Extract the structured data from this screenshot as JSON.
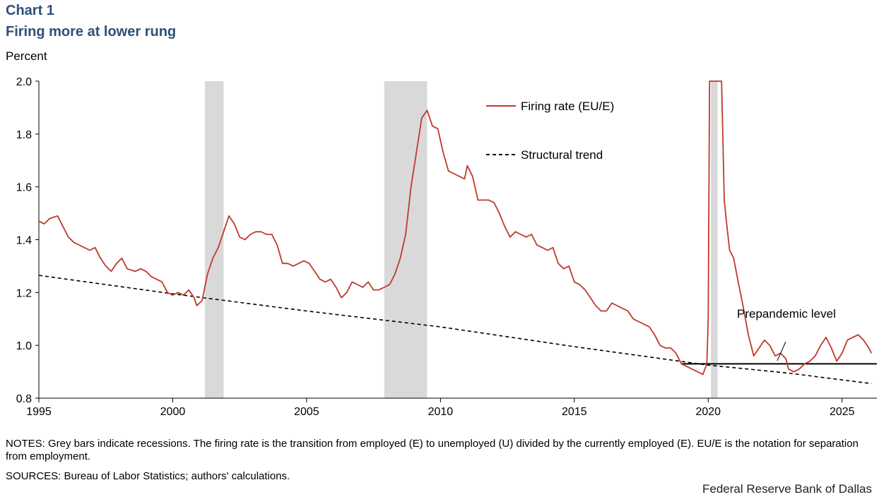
{
  "header": {
    "chart_label": "Chart 1",
    "title": "Firing more at lower rung",
    "y_unit": "Percent"
  },
  "notes": "NOTES: Grey bars indicate recessions. The firing rate is the transition from employed (E) to unemployed (U) divided by the currently employed (E). EU/E is the notation for separation from employment.",
  "sources": "SOURCES: Bureau of Labor Statistics; authors' calculations.",
  "footer": "Federal Reserve Bank of Dallas",
  "chart_data": {
    "type": "line",
    "title": "Firing more at lower rung",
    "ylabel": "Percent",
    "xlim": [
      1995,
      2026.3
    ],
    "ylim": [
      0.8,
      2.0
    ],
    "x_ticks": [
      1995,
      2000,
      2005,
      2010,
      2015,
      2020,
      2025
    ],
    "y_ticks": [
      "0.8",
      "1.0",
      "1.2",
      "1.4",
      "1.6",
      "1.8",
      "2.0"
    ],
    "grid": false,
    "legend_position": "top-center",
    "recessions": [
      [
        2001.2,
        2001.9
      ],
      [
        2007.9,
        2009.5
      ],
      [
        2020.1,
        2020.35
      ]
    ],
    "colors": {
      "firing": "#c0392b",
      "recession": "#d9d9d9",
      "trend": "#000000",
      "prepandemic": "#000000"
    },
    "annotations": [
      {
        "text": "Prepandemic level"
      }
    ],
    "series": [
      {
        "name": "Firing rate (EU/E)",
        "style": "solid",
        "points": [
          [
            1995.0,
            1.47
          ],
          [
            1995.2,
            1.46
          ],
          [
            1995.4,
            1.48
          ],
          [
            1995.7,
            1.49
          ],
          [
            1995.9,
            1.45
          ],
          [
            1996.1,
            1.41
          ],
          [
            1996.3,
            1.39
          ],
          [
            1996.5,
            1.38
          ],
          [
            1996.7,
            1.37
          ],
          [
            1996.9,
            1.36
          ],
          [
            1997.1,
            1.37
          ],
          [
            1997.3,
            1.33
          ],
          [
            1997.5,
            1.3
          ],
          [
            1997.7,
            1.28
          ],
          [
            1997.9,
            1.31
          ],
          [
            1998.1,
            1.33
          ],
          [
            1998.3,
            1.29
          ],
          [
            1998.6,
            1.28
          ],
          [
            1998.8,
            1.29
          ],
          [
            1999.0,
            1.28
          ],
          [
            1999.2,
            1.26
          ],
          [
            1999.4,
            1.25
          ],
          [
            1999.6,
            1.24
          ],
          [
            1999.8,
            1.2
          ],
          [
            2000.0,
            1.19
          ],
          [
            2000.2,
            1.2
          ],
          [
            2000.4,
            1.19
          ],
          [
            2000.6,
            1.21
          ],
          [
            2000.8,
            1.18
          ],
          [
            2000.9,
            1.15
          ],
          [
            2001.1,
            1.17
          ],
          [
            2001.3,
            1.27
          ],
          [
            2001.5,
            1.33
          ],
          [
            2001.7,
            1.37
          ],
          [
            2001.9,
            1.43
          ],
          [
            2002.1,
            1.49
          ],
          [
            2002.3,
            1.46
          ],
          [
            2002.5,
            1.41
          ],
          [
            2002.7,
            1.4
          ],
          [
            2002.9,
            1.42
          ],
          [
            2003.1,
            1.43
          ],
          [
            2003.3,
            1.43
          ],
          [
            2003.5,
            1.42
          ],
          [
            2003.7,
            1.42
          ],
          [
            2003.9,
            1.38
          ],
          [
            2004.1,
            1.31
          ],
          [
            2004.3,
            1.31
          ],
          [
            2004.5,
            1.3
          ],
          [
            2004.7,
            1.31
          ],
          [
            2004.9,
            1.32
          ],
          [
            2005.1,
            1.31
          ],
          [
            2005.3,
            1.28
          ],
          [
            2005.5,
            1.25
          ],
          [
            2005.7,
            1.24
          ],
          [
            2005.9,
            1.25
          ],
          [
            2006.1,
            1.22
          ],
          [
            2006.3,
            1.18
          ],
          [
            2006.5,
            1.2
          ],
          [
            2006.7,
            1.24
          ],
          [
            2006.9,
            1.23
          ],
          [
            2007.1,
            1.22
          ],
          [
            2007.3,
            1.24
          ],
          [
            2007.5,
            1.21
          ],
          [
            2007.7,
            1.21
          ],
          [
            2007.9,
            1.22
          ],
          [
            2008.1,
            1.23
          ],
          [
            2008.3,
            1.27
          ],
          [
            2008.5,
            1.33
          ],
          [
            2008.7,
            1.42
          ],
          [
            2008.9,
            1.6
          ],
          [
            2009.1,
            1.73
          ],
          [
            2009.3,
            1.86
          ],
          [
            2009.5,
            1.89
          ],
          [
            2009.7,
            1.83
          ],
          [
            2009.9,
            1.82
          ],
          [
            2010.1,
            1.73
          ],
          [
            2010.3,
            1.66
          ],
          [
            2010.5,
            1.65
          ],
          [
            2010.7,
            1.64
          ],
          [
            2010.9,
            1.63
          ],
          [
            2011.0,
            1.68
          ],
          [
            2011.2,
            1.64
          ],
          [
            2011.4,
            1.55
          ],
          [
            2011.6,
            1.55
          ],
          [
            2011.8,
            1.55
          ],
          [
            2012.0,
            1.54
          ],
          [
            2012.2,
            1.5
          ],
          [
            2012.4,
            1.45
          ],
          [
            2012.6,
            1.41
          ],
          [
            2012.8,
            1.43
          ],
          [
            2013.0,
            1.42
          ],
          [
            2013.2,
            1.41
          ],
          [
            2013.4,
            1.42
          ],
          [
            2013.6,
            1.38
          ],
          [
            2013.8,
            1.37
          ],
          [
            2014.0,
            1.36
          ],
          [
            2014.2,
            1.37
          ],
          [
            2014.4,
            1.31
          ],
          [
            2014.6,
            1.29
          ],
          [
            2014.8,
            1.3
          ],
          [
            2015.0,
            1.24
          ],
          [
            2015.2,
            1.23
          ],
          [
            2015.4,
            1.21
          ],
          [
            2015.6,
            1.18
          ],
          [
            2015.8,
            1.15
          ],
          [
            2016.0,
            1.13
          ],
          [
            2016.2,
            1.13
          ],
          [
            2016.4,
            1.16
          ],
          [
            2016.6,
            1.15
          ],
          [
            2016.8,
            1.14
          ],
          [
            2017.0,
            1.13
          ],
          [
            2017.2,
            1.1
          ],
          [
            2017.4,
            1.09
          ],
          [
            2017.6,
            1.08
          ],
          [
            2017.8,
            1.07
          ],
          [
            2018.0,
            1.04
          ],
          [
            2018.2,
            1.0
          ],
          [
            2018.4,
            0.99
          ],
          [
            2018.6,
            0.99
          ],
          [
            2018.8,
            0.97
          ],
          [
            2019.0,
            0.93
          ],
          [
            2019.2,
            0.92
          ],
          [
            2019.4,
            0.91
          ],
          [
            2019.6,
            0.9
          ],
          [
            2019.8,
            0.89
          ],
          [
            2019.95,
            0.93
          ],
          [
            2020.0,
            1.1
          ],
          [
            2020.05,
            2.0
          ],
          [
            2020.5,
            2.0
          ],
          [
            2020.6,
            1.55
          ],
          [
            2020.7,
            1.45
          ],
          [
            2020.8,
            1.36
          ],
          [
            2020.95,
            1.33
          ],
          [
            2021.1,
            1.25
          ],
          [
            2021.3,
            1.15
          ],
          [
            2021.5,
            1.04
          ],
          [
            2021.7,
            0.96
          ],
          [
            2021.9,
            0.99
          ],
          [
            2022.1,
            1.02
          ],
          [
            2022.3,
            1.0
          ],
          [
            2022.5,
            0.96
          ],
          [
            2022.7,
            0.97
          ],
          [
            2022.9,
            0.95
          ],
          [
            2023.0,
            0.91
          ],
          [
            2023.2,
            0.9
          ],
          [
            2023.4,
            0.91
          ],
          [
            2023.6,
            0.93
          ],
          [
            2023.8,
            0.94
          ],
          [
            2024.0,
            0.96
          ],
          [
            2024.2,
            1.0
          ],
          [
            2024.4,
            1.03
          ],
          [
            2024.6,
            0.99
          ],
          [
            2024.8,
            0.94
          ],
          [
            2025.0,
            0.97
          ],
          [
            2025.2,
            1.02
          ],
          [
            2025.4,
            1.03
          ],
          [
            2025.6,
            1.04
          ],
          [
            2025.8,
            1.02
          ],
          [
            2026.0,
            0.99
          ],
          [
            2026.1,
            0.97
          ]
        ]
      },
      {
        "name": "Structural trend",
        "style": "dashed",
        "points": [
          [
            1995.0,
            1.265
          ],
          [
            2000.0,
            1.195
          ],
          [
            2005.0,
            1.13
          ],
          [
            2010.0,
            1.07
          ],
          [
            2015.0,
            0.995
          ],
          [
            2020.0,
            0.925
          ],
          [
            2023.0,
            0.895
          ],
          [
            2026.1,
            0.855
          ]
        ]
      },
      {
        "style": "solid-flat",
        "points": [
          [
            2019.0,
            0.93
          ],
          [
            2026.3,
            0.93
          ]
        ]
      }
    ]
  }
}
